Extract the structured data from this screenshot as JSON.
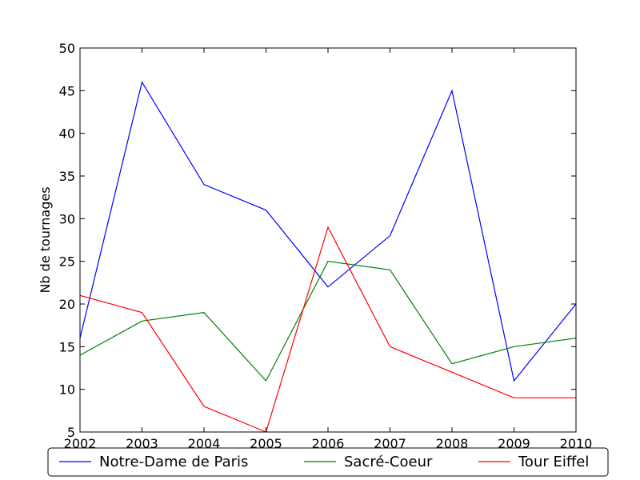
{
  "chart_data": {
    "type": "line",
    "xlabel": "",
    "ylabel": "Nb de tournages",
    "x": [
      2002,
      2003,
      2004,
      2005,
      2006,
      2007,
      2008,
      2009,
      2010
    ],
    "xlim": [
      2002,
      2010
    ],
    "ylim": [
      5,
      50
    ],
    "xticks": [
      "2002",
      "2003",
      "2004",
      "2005",
      "2006",
      "2007",
      "2008",
      "2009",
      "2010"
    ],
    "yticks": [
      "5",
      "10",
      "15",
      "20",
      "25",
      "30",
      "35",
      "40",
      "45",
      "50"
    ],
    "grid": false,
    "legend_position": "bottom",
    "series": [
      {
        "name": "Notre-Dame de Paris",
        "color": "#0000ff",
        "values": [
          16,
          46,
          34,
          31,
          22,
          28,
          45,
          11,
          20
        ]
      },
      {
        "name": "Sacré-Coeur",
        "color": "#008000",
        "values": [
          14,
          18,
          19,
          11,
          25,
          24,
          13,
          15,
          16
        ]
      },
      {
        "name": "Tour Eiffel",
        "color": "#ff0000",
        "values": [
          21,
          19,
          8,
          5,
          29,
          15,
          12,
          9,
          9
        ]
      }
    ]
  }
}
